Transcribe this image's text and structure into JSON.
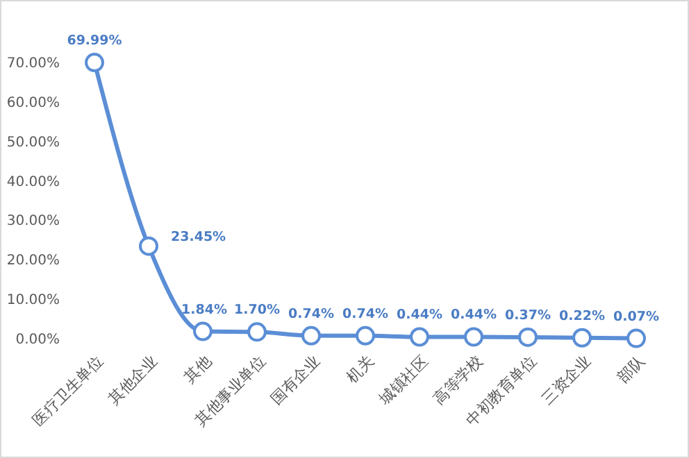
{
  "chart_data": {
    "type": "line",
    "categories": [
      "医疗卫生单位",
      "其他企业",
      "其他",
      "其他事业单位",
      "国有企业",
      "机关",
      "城镇社区",
      "高等学校",
      "中初教育单位",
      "三资企业",
      "部队"
    ],
    "series": [
      {
        "color": "#5b8ed6",
        "values": [
          69.99,
          23.45,
          1.84,
          1.7,
          0.74,
          0.74,
          0.44,
          0.44,
          0.37,
          0.22,
          0.07
        ],
        "value_labels": [
          "69.99%",
          "23.45%",
          "1.84%",
          "1.70%",
          "0.74%",
          "0.74%",
          "0.44%",
          "0.44%",
          "0.37%",
          "0.22%",
          "0.07%"
        ]
      }
    ],
    "ylim": [
      0,
      70
    ],
    "yticks": [
      {
        "value": 0,
        "label": "0.00%"
      },
      {
        "value": 10,
        "label": "10.00%"
      },
      {
        "value": 20,
        "label": "20.00%"
      },
      {
        "value": 30,
        "label": "30.00%"
      },
      {
        "value": 40,
        "label": "40.00%"
      },
      {
        "value": 50,
        "label": "50.00%"
      },
      {
        "value": 60,
        "label": "60.00%"
      },
      {
        "value": 70,
        "label": "70.00%"
      }
    ],
    "marker": "circle",
    "line_style": "solid",
    "grid": false
  }
}
